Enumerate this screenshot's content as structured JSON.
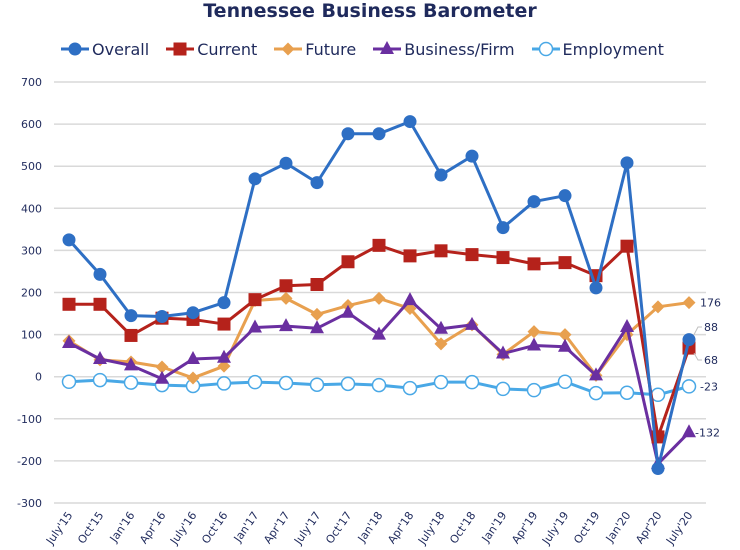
{
  "chart_data": {
    "type": "line",
    "title": "Tennessee Business Barometer",
    "xlabel": "",
    "ylabel": "",
    "ylim": [
      -300,
      700
    ],
    "yticks": [
      "700",
      "600",
      "500",
      "400",
      "300",
      "200",
      "100",
      "0",
      "-100",
      "-200",
      "-300"
    ],
    "ytick_values": [
      700,
      600,
      500,
      400,
      300,
      200,
      100,
      0,
      -100,
      -200,
      -300
    ],
    "grid": true,
    "legend_position": "top",
    "categories": [
      "July'15",
      "Oct'15",
      "Jan'16",
      "Apr'16",
      "July'16",
      "Oct'16",
      "Jan'17",
      "Apr'17",
      "July'17",
      "Oct'17",
      "Jan'18",
      "Apr'18",
      "July'18",
      "Oct'18",
      "Jan'19",
      "Apr'19",
      "July'19",
      "Oct'19",
      "Jan'20",
      "Apr'20",
      "July'20"
    ],
    "series": [
      {
        "name": "Overall",
        "color": "#2e6fc4",
        "marker": "circle",
        "values": [
          325,
          243,
          145,
          143,
          152,
          176,
          470,
          507,
          461,
          577,
          577,
          606,
          479,
          524,
          354,
          416,
          430,
          211,
          508,
          -218,
          88
        ]
      },
      {
        "name": "Current",
        "color": "#b5221b",
        "marker": "square",
        "values": [
          172,
          172,
          98,
          139,
          136,
          125,
          183,
          216,
          219,
          273,
          312,
          287,
          299,
          290,
          283,
          268,
          271,
          240,
          310,
          -143,
          68
        ]
      },
      {
        "name": "Future",
        "color": "#e8a04f",
        "marker": "diamond",
        "values": [
          85,
          40,
          35,
          23,
          -3,
          25,
          181,
          186,
          148,
          169,
          186,
          162,
          78,
          123,
          53,
          107,
          100,
          3,
          100,
          166,
          176
        ]
      },
      {
        "name": "Business/Firm",
        "color": "#6a2fa0",
        "marker": "triangle",
        "values": [
          80,
          42,
          27,
          -5,
          42,
          45,
          117,
          120,
          115,
          152,
          100,
          182,
          114,
          123,
          55,
          74,
          71,
          3,
          118,
          -207,
          -132
        ]
      },
      {
        "name": "Employment",
        "color": "#49a8e6",
        "marker": "open-circle",
        "values": [
          -12,
          -8,
          -14,
          -20,
          -22,
          -16,
          -13,
          -15,
          -19,
          -17,
          -20,
          -27,
          -13,
          -13,
          -29,
          -32,
          -12,
          -39,
          -38,
          -43,
          -23
        ]
      }
    ],
    "annotations": [
      "176",
      "88",
      "68",
      "-23",
      "-132"
    ]
  }
}
